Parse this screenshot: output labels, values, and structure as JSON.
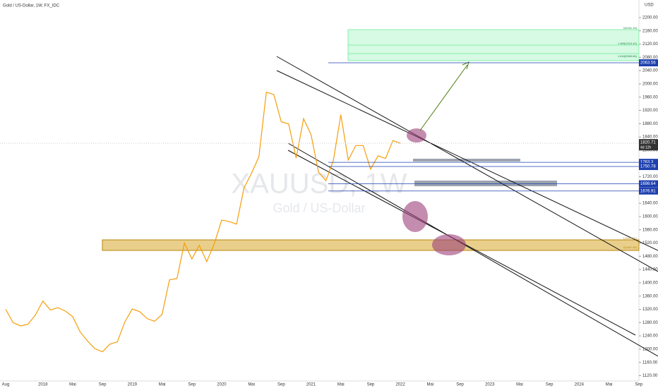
{
  "chart_data": {
    "type": "line",
    "title": "Gold / US-Dollar, 1W, FX_IDC",
    "watermark": "XAUUSD, 1W",
    "watermark_sub": "Gold / US-Dollar",
    "y_unit": "USD",
    "x": [
      "2017-08",
      "2017-09",
      "2017-10",
      "2017-11",
      "2017-12",
      "2018-01",
      "2018-02",
      "2018-03",
      "2018-04",
      "2018-05",
      "2018-06",
      "2018-07",
      "2018-08",
      "2018-09",
      "2018-10",
      "2018-11",
      "2018-12",
      "2019-01",
      "2019-02",
      "2019-03",
      "2019-04",
      "2019-05",
      "2019-06",
      "2019-07",
      "2019-08",
      "2019-09",
      "2019-10",
      "2019-11",
      "2019-12",
      "2020-01",
      "2020-02",
      "2020-03",
      "2020-04",
      "2020-05",
      "2020-06",
      "2020-07",
      "2020-08",
      "2020-09",
      "2020-10",
      "2020-11",
      "2020-12",
      "2021-01",
      "2021-02",
      "2021-03",
      "2021-04",
      "2021-05",
      "2021-06",
      "2021-07",
      "2021-08",
      "2021-09",
      "2021-10",
      "2021-11",
      "2021-12",
      "2022-01"
    ],
    "series": [
      {
        "name": "XAUUSD",
        "color": "#f59e0b",
        "values": [
          1320,
          1280,
          1270,
          1275,
          1303,
          1345,
          1318,
          1325,
          1315,
          1298,
          1252,
          1224,
          1201,
          1192,
          1215,
          1222,
          1282,
          1321,
          1313,
          1292,
          1284,
          1305,
          1409,
          1413,
          1520,
          1472,
          1513,
          1464,
          1517,
          1589,
          1585,
          1577,
          1686,
          1730,
          1780,
          1975,
          1968,
          1886,
          1879,
          1776,
          1895,
          1847,
          1734,
          1708,
          1769,
          1907,
          1770,
          1814,
          1814,
          1743,
          1783,
          1775,
          1829,
          1820.71
        ]
      }
    ],
    "ylim": [
      1104,
      2253
    ],
    "yticks": [
      {
        "value": 1120,
        "label": "1120.00"
      },
      {
        "value": 1160,
        "label": "1160.00"
      },
      {
        "value": 1200,
        "label": "1200.00"
      },
      {
        "value": 1240,
        "label": "1240.00"
      },
      {
        "value": 1280,
        "label": "1280.00"
      },
      {
        "value": 1320,
        "label": "1320.00"
      },
      {
        "value": 1360,
        "label": "1360.00"
      },
      {
        "value": 1400,
        "label": "1400.00"
      },
      {
        "value": 1440,
        "label": "1440.00"
      },
      {
        "value": 1480,
        "label": "1480.00"
      },
      {
        "value": 1520,
        "label": "1520.00"
      },
      {
        "value": 1560,
        "label": "1560.00"
      },
      {
        "value": 1600,
        "label": "1600.00"
      },
      {
        "value": 1640,
        "label": "1640.00"
      },
      {
        "value": 1680,
        "label": "1680.00"
      },
      {
        "value": 1720,
        "label": "1720.00"
      },
      {
        "value": 1760,
        "label": "1760.00"
      },
      {
        "value": 1800,
        "label": "1800.00"
      },
      {
        "value": 1840,
        "label": "1840.00"
      },
      {
        "value": 1880,
        "label": "1880.00"
      },
      {
        "value": 1920,
        "label": "1920.00"
      },
      {
        "value": 1960,
        "label": "1960.00"
      },
      {
        "value": 2000,
        "label": "2000.00"
      },
      {
        "value": 2040,
        "label": "2040.00"
      },
      {
        "value": 2080,
        "label": "2080.00"
      },
      {
        "value": 2120,
        "label": "2120.00"
      },
      {
        "value": 2160,
        "label": "2160.00"
      },
      {
        "value": 2200,
        "label": "2200.00"
      }
    ],
    "xticks": [
      {
        "value": "2017-08",
        "label": "Aug"
      },
      {
        "value": "2018-01",
        "label": "2018"
      },
      {
        "value": "2018-05",
        "label": "Mai"
      },
      {
        "value": "2018-09",
        "label": "Sep"
      },
      {
        "value": "2019-01",
        "label": "2019"
      },
      {
        "value": "2019-05",
        "label": "Mai"
      },
      {
        "value": "2019-09",
        "label": "Sep"
      },
      {
        "value": "2020-01",
        "label": "2020"
      },
      {
        "value": "2020-05",
        "label": "Mai"
      },
      {
        "value": "2020-09",
        "label": "Sep"
      },
      {
        "value": "2021-01",
        "label": "2021"
      },
      {
        "value": "2021-05",
        "label": "Mai"
      },
      {
        "value": "2021-09",
        "label": "Sep"
      },
      {
        "value": "2022-01",
        "label": "2022"
      },
      {
        "value": "2022-05",
        "label": "Mai"
      },
      {
        "value": "2022-09",
        "label": "Sep"
      },
      {
        "value": "2023-01",
        "label": "2023"
      },
      {
        "value": "2023-05",
        "label": "Mai"
      },
      {
        "value": "2023-09",
        "label": "Sep"
      },
      {
        "value": "2024-01",
        "label": "2024"
      },
      {
        "value": "2024-05",
        "label": "Mai"
      },
      {
        "value": "2024-09",
        "label": "Sep"
      }
    ],
    "price_tags": [
      {
        "value": 2063.56,
        "color": "#1e40af"
      },
      {
        "value": 1763.3,
        "color": "#1e40af"
      },
      {
        "value": 1750.78,
        "color": "#1e40af"
      },
      {
        "value": 1698.64,
        "color": "#1e40af"
      },
      {
        "value": 1676.91,
        "color": "#1e40af"
      }
    ],
    "last_price": 1820.71,
    "countdown": "4d 12h",
    "fib_labels": [
      "2(2161.19)",
      "1.809(2115.42)",
      "1.618(2089.66)"
    ],
    "zone_labels": [
      "1(1507.81)",
      "0(1487.56)"
    ]
  }
}
